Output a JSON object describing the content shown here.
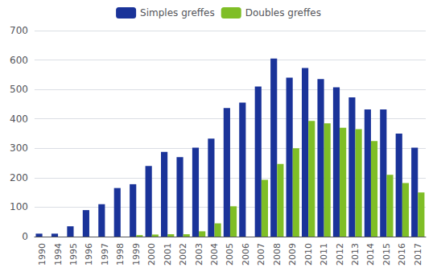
{
  "chart_data": {
    "type": "bar",
    "categories": [
      "1990",
      "1994",
      "1995",
      "1996",
      "1997",
      "1998",
      "1999",
      "2000",
      "2001",
      "2002",
      "2003",
      "2004",
      "2005",
      "2006",
      "2007",
      "2008",
      "2009",
      "2010",
      "2011",
      "2012",
      "2013",
      "2014",
      "2015",
      "2016",
      "2017"
    ],
    "series": [
      {
        "name": "Simples greffes",
        "color": "#1a3399",
        "values": [
          10,
          10,
          35,
          90,
          110,
          165,
          178,
          240,
          288,
          270,
          302,
          333,
          437,
          455,
          510,
          605,
          540,
          573,
          535,
          507,
          473,
          432,
          432,
          350,
          302
        ]
      },
      {
        "name": "Doubles greffes",
        "color": "#7fbe26",
        "values": [
          0,
          0,
          0,
          0,
          0,
          0,
          5,
          7,
          8,
          8,
          18,
          45,
          103,
          0,
          193,
          247,
          300,
          393,
          385,
          370,
          365,
          325,
          210,
          182,
          150
        ]
      }
    ],
    "ylim": [
      0,
      700
    ],
    "yticks": [
      0,
      100,
      200,
      300,
      400,
      500,
      600,
      700
    ],
    "grid": true,
    "legend": "top"
  }
}
